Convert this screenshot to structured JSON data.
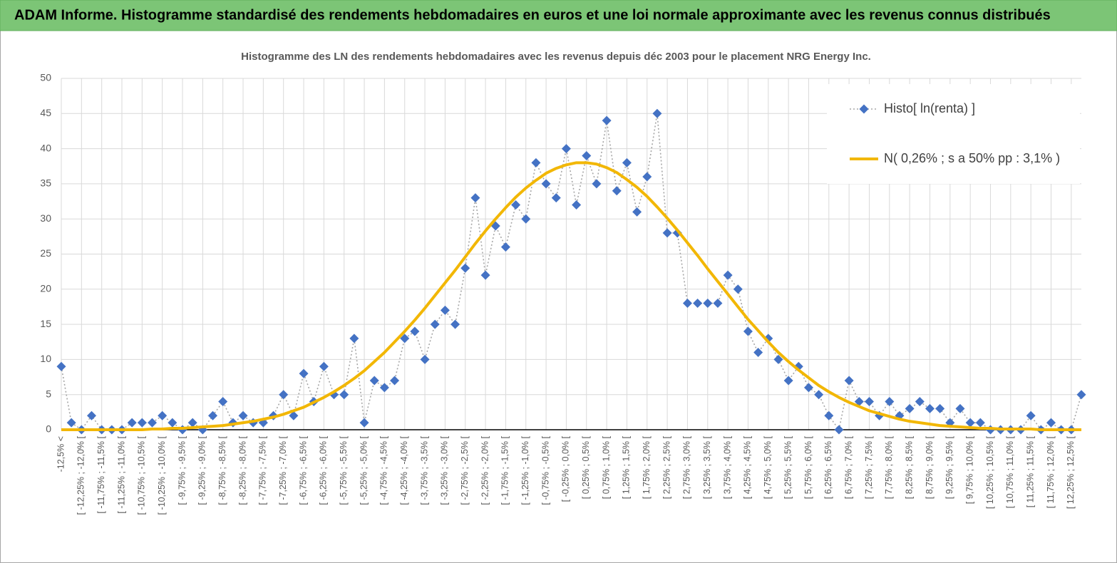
{
  "chart_data": {
    "type": "line",
    "title": "ADAM Informe. Histogramme standardisé des rendements hebdomadaires en euros et une loi normale approximante avec les revenus connus distribués",
    "subtitle": "Histogramme des LN des rendements hebdomadaires avec les revenus depuis déc 2003 pour le placement NRG Energy Inc.",
    "categories": [
      "-12,5% <",
      null,
      "[ -12,25% ; -12,0% [",
      null,
      "[ -11,75% ; -11,5% [",
      null,
      "[ -11,25% ; -11,0% [",
      null,
      "[ -10,75% ; -10,5% [",
      null,
      "[ -10,25% ; -10,0% [",
      null,
      "[ -9,75% ; -9,5% [",
      null,
      "[ -9,25% ; -9,0% [",
      null,
      "[ -8,75% ; -8,5% [",
      null,
      "[ -8,25% ; -8,0% [",
      null,
      "[ -7,75% ; -7,5% [",
      null,
      "[ -7,25% ; -7,0% [",
      null,
      "[ -6,75% ; -6,5% [",
      null,
      "[ -6,25% ; -6,0% [",
      null,
      "[ -5,75% ; -5,5% [",
      null,
      "[ -5,25% ; -5,0% [",
      null,
      "[ -4,75% ; -4,5% [",
      null,
      "[ -4,25% ; -4,0% [",
      null,
      "[ -3,75% ; -3,5% [",
      null,
      "[ -3,25% ; -3,0% [",
      null,
      "[ -2,75% ; -2,5% [",
      null,
      "[ -2,25% ; -2,0% [",
      null,
      "[ -1,75% ; -1,5% [",
      null,
      "[ -1,25% ; -1,0% [",
      null,
      "[ -0,75% ; -0,5% [",
      null,
      "[ -0,25% ; 0,0% [",
      null,
      "[ 0,25% ; 0,5% [",
      null,
      "[ 0,75% ; 1,0% [",
      null,
      "[ 1,25% ; 1,5% [",
      null,
      "[ 1,75% ; 2,0% [",
      null,
      "[ 2,25% ; 2,5% [",
      null,
      "[ 2,75% ; 3,0% [",
      null,
      "[ 3,25% ; 3,5% [",
      null,
      "[ 3,75% ; 4,0% [",
      null,
      "[ 4,25% ; 4,5% [",
      null,
      "[ 4,75% ; 5,0% [",
      null,
      "[ 5,25% ; 5,5% [",
      null,
      "[ 5,75% ; 6,0% [",
      null,
      "[ 6,25% ; 6,5% [",
      null,
      "[ 6,75% ; 7,0% [",
      null,
      "[ 7,25% ; 7,5% [",
      null,
      "[ 7,75% ; 8,0% [",
      null,
      "[ 8,25% ; 8,5% [",
      null,
      "[ 8,75% ; 9,0% [",
      null,
      "[ 9,25% ; 9,5% [",
      null,
      "[ 9,75% ; 10,0% [",
      null,
      "[ 10,25% ; 10,5% [",
      null,
      "[ 10,75% ; 11,0% [",
      null,
      "[ 11,25% ; 11,5% [",
      null,
      "[ 11,75% ; 12,0% [",
      null,
      "[ 12,25% ; 12,5% [",
      null
    ],
    "series": [
      {
        "name": "Histo[ ln(renta) ]",
        "color": "#4472c4",
        "line_color": "#a6a6a6",
        "marker": "diamond",
        "dashed": true,
        "values": [
          9,
          1,
          0,
          2,
          0,
          0,
          0,
          1,
          1,
          1,
          2,
          1,
          0,
          1,
          0,
          2,
          4,
          1,
          2,
          1,
          1,
          2,
          5,
          2,
          8,
          4,
          9,
          5,
          5,
          13,
          1,
          7,
          6,
          7,
          13,
          14,
          10,
          15,
          17,
          15,
          23,
          33,
          22,
          29,
          26,
          32,
          30,
          38,
          35,
          33,
          40,
          32,
          39,
          35,
          44,
          34,
          38,
          31,
          36,
          45,
          28,
          28,
          18,
          18,
          18,
          18,
          22,
          20,
          14,
          11,
          13,
          10,
          7,
          9,
          6,
          5,
          2,
          0,
          7,
          4,
          4,
          2,
          4,
          2,
          3,
          4,
          3,
          3,
          1,
          3,
          1,
          1,
          0,
          0,
          0,
          0,
          2,
          0,
          1,
          0,
          0,
          5
        ]
      },
      {
        "name": "N( 0,26% ; s a 50% pp : 3,1% )",
        "color": "#f2b705",
        "marker": "none",
        "dashed": false,
        "values": [
          0,
          0,
          0,
          0,
          0,
          0,
          0,
          0,
          0,
          0.1,
          0.1,
          0.2,
          0.2,
          0.3,
          0.4,
          0.5,
          0.6,
          0.8,
          1.0,
          1.2,
          1.5,
          1.8,
          2.2,
          2.7,
          3.2,
          3.9,
          4.6,
          5.4,
          6.3,
          7.3,
          8.4,
          9.7,
          11.0,
          12.5,
          14.0,
          15.6,
          17.3,
          19.1,
          20.9,
          22.7,
          24.6,
          26.5,
          28.3,
          30.0,
          31.6,
          33.1,
          34.4,
          35.5,
          36.5,
          37.2,
          37.7,
          38.0,
          38.0,
          37.8,
          37.3,
          36.6,
          35.6,
          34.5,
          33.2,
          31.7,
          30.1,
          28.4,
          26.6,
          24.8,
          22.9,
          21.1,
          19.3,
          17.5,
          15.7,
          14.1,
          12.5,
          11.0,
          9.7,
          8.5,
          7.4,
          6.3,
          5.4,
          4.6,
          3.9,
          3.3,
          2.7,
          2.3,
          1.9,
          1.5,
          1.2,
          1.0,
          0.8,
          0.6,
          0.5,
          0.4,
          0.3,
          0.2,
          0.2,
          0.1,
          0.1,
          0.1,
          0.1,
          0,
          0,
          0,
          0,
          0
        ]
      }
    ],
    "ylim": [
      0,
      50
    ],
    "yticks": [
      0,
      5,
      10,
      15,
      20,
      25,
      30,
      35,
      40,
      45,
      50
    ],
    "grid": true,
    "legend": "upper right"
  }
}
